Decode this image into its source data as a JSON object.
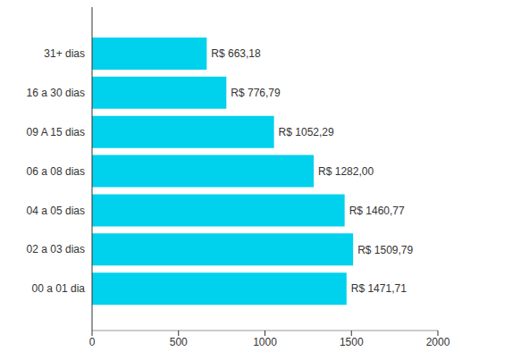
{
  "chart_data": {
    "type": "bar",
    "orientation": "horizontal",
    "categories": [
      "31+ dias",
      "16 a 30 dias",
      "09 A 15 dias",
      "06 a 08 dias",
      "04 a 05 dias",
      "02 a 03 dias",
      "00 a 01 dia"
    ],
    "values": [
      663.18,
      776.79,
      1052.29,
      1282.0,
      1460.77,
      1509.79,
      1471.71
    ],
    "value_labels": [
      "R$ 663,18",
      "R$ 776,79",
      "R$ 1052,29",
      "R$ 1282,00",
      "R$ 1460,77",
      "R$ 1509,79",
      "R$ 1471,71"
    ],
    "data_labels": true,
    "color": "#00d1ec",
    "xlim": [
      0,
      2000
    ],
    "xticks": [
      0,
      500,
      1000,
      1500,
      2000
    ],
    "grid": false
  }
}
